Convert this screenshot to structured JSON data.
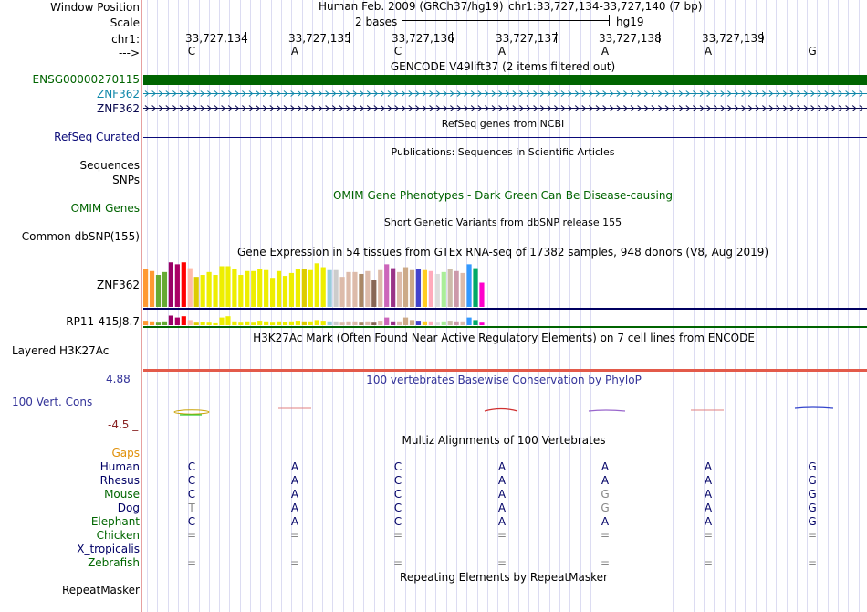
{
  "ruler": {
    "window_position_label": "Window Position",
    "scale_label": "Scale",
    "chrom_label": "chr1:",
    "strand_label": "--->",
    "assembly_text": "Human Feb. 2009 (GRCh37/hg19)",
    "position_text": "chr1:33,727,134-33,727,140 (7 bp)",
    "scale_text": "2 bases",
    "assembly_short": "hg19",
    "coordinates": [
      "33,727,134",
      "33,727,135",
      "33,727,136",
      "33,727,137",
      "33,727,138",
      "33,727,139"
    ],
    "bases": [
      "C",
      "A",
      "C",
      "A",
      "A",
      "A",
      "G"
    ]
  },
  "gencode": {
    "title": "GENCODE V49lift37 (2 items filtered out)",
    "items": [
      {
        "label": "ENSG00000270115",
        "color": "#006400"
      },
      {
        "label": "ZNF362",
        "color": "#1188aa"
      },
      {
        "label": "ZNF362",
        "color": "#0a0a50"
      }
    ]
  },
  "refseq": {
    "title": "RefSeq genes from NCBI",
    "label": "RefSeq Curated",
    "color": "#0a0a78"
  },
  "publications": {
    "title": "Publications: Sequences in Scientific Articles",
    "rows": [
      "Sequences",
      "SNPs"
    ]
  },
  "omim": {
    "title": "OMIM Gene Phenotypes - Dark Green Can Be Disease-causing",
    "label": "OMIM Genes",
    "color": "#006400"
  },
  "dbsnp": {
    "title": "Short Genetic Variants from dbSNP release 155",
    "label": "Common dbSNP(155)"
  },
  "gtex": {
    "title": "Gene Expression in 54 tissues from GTEx RNA-seq of 17382 samples, 948 donors (V8, Aug 2019)",
    "genes": [
      "ZNF362",
      "RP11-415J8.7"
    ],
    "values_gene1": [
      0.78,
      0.74,
      0.66,
      0.72,
      0.92,
      0.88,
      0.92,
      0.8,
      0.62,
      0.66,
      0.72,
      0.66,
      0.84,
      0.84,
      0.78,
      0.66,
      0.74,
      0.74,
      0.78,
      0.76,
      0.6,
      0.74,
      0.64,
      0.7,
      0.78,
      0.78,
      0.76,
      0.9,
      0.82,
      0.76,
      0.76,
      0.62,
      0.72,
      0.72,
      0.68,
      0.74,
      0.56,
      0.76,
      0.88,
      0.8,
      0.72,
      0.82,
      0.76,
      0.78,
      0.76,
      0.74,
      0.68,
      0.72,
      0.78,
      0.74,
      0.7,
      0.88,
      0.8,
      0.5
    ],
    "values_gene2": [
      0.35,
      0.3,
      0.2,
      0.3,
      0.75,
      0.6,
      0.7,
      0.4,
      0.2,
      0.25,
      0.2,
      0.15,
      0.6,
      0.7,
      0.3,
      0.2,
      0.3,
      0.2,
      0.35,
      0.3,
      0.2,
      0.3,
      0.25,
      0.3,
      0.35,
      0.3,
      0.3,
      0.4,
      0.35,
      0.3,
      0.3,
      0.2,
      0.3,
      0.3,
      0.2,
      0.3,
      0.2,
      0.35,
      0.6,
      0.3,
      0.3,
      0.6,
      0.4,
      0.35,
      0.3,
      0.3,
      0.2,
      0.3,
      0.35,
      0.3,
      0.3,
      0.6,
      0.4,
      0.2
    ],
    "colors": [
      "#ff9933",
      "#ff9933",
      "#66aa33",
      "#66aa33",
      "#990066",
      "#aa0066",
      "#ff0000",
      "#ffbbaa",
      "#ddcc00",
      "#eeee00",
      "#eeee00",
      "#eeee00",
      "#eeee00",
      "#eeee00",
      "#eeee00",
      "#eeee00",
      "#eeee00",
      "#eeee00",
      "#eeee00",
      "#eeee00",
      "#eeee00",
      "#eeee00",
      "#eeee00",
      "#eeee00",
      "#eeee00",
      "#ddcc00",
      "#eeee00",
      "#eeee00",
      "#eeee00",
      "#99ccdd",
      "#cccccc",
      "#ddbbaa",
      "#ddbbaa",
      "#ddbbaa",
      "#aa8866",
      "#ddbbaa",
      "#886655",
      "#ddbbaa",
      "#cc66bb",
      "#993388",
      "#ddbbaa",
      "#ccaa88",
      "#ccaa88",
      "#4444cc",
      "#ffcc22",
      "#ffaabb",
      "#dddddd",
      "#aaee99",
      "#ccbbaa",
      "#cc99aa",
      "#ddbbaa",
      "#3399ff",
      "#00aa66",
      "#ff00cc"
    ]
  },
  "h3k27ac": {
    "title": "H3K27Ac Mark (Often Found Near Active Regulatory Elements) on 7 cell lines from ENCODE",
    "label": "Layered H3K27Ac"
  },
  "phylop": {
    "title": "100 vertebrates Basewise Conservation by PhyloP",
    "label": "100 Vert. Cons",
    "max": "4.88 _",
    "min": "-4.5 _",
    "title_color": "#333399"
  },
  "multiz": {
    "title": "Multiz Alignments of 100 Vertebrates",
    "gaps_label": "Gaps",
    "species": [
      {
        "name": "Human",
        "color": "#000066",
        "bases": [
          "C",
          "A",
          "C",
          "A",
          "A",
          "A",
          "G"
        ]
      },
      {
        "name": "Rhesus",
        "color": "#000066",
        "bases": [
          "C",
          "A",
          "C",
          "A",
          "A",
          "A",
          "G"
        ]
      },
      {
        "name": "Mouse",
        "color": "#006600",
        "bases": [
          "C",
          "A",
          "C",
          "A",
          "G",
          "A",
          "G"
        ]
      },
      {
        "name": "Dog",
        "color": "#000066",
        "bases": [
          "T",
          "A",
          "C",
          "A",
          "G",
          "A",
          "G"
        ]
      },
      {
        "name": "Elephant",
        "color": "#006600",
        "bases": [
          "C",
          "A",
          "C",
          "A",
          "A",
          "A",
          "G"
        ]
      },
      {
        "name": "Chicken",
        "color": "#006600",
        "bases": [
          "=",
          "=",
          "=",
          "=",
          "=",
          "=",
          "="
        ]
      },
      {
        "name": "X_tropicalis",
        "color": "#000066",
        "bases": [
          "",
          "",
          "",
          "",
          "",
          "",
          ""
        ]
      },
      {
        "name": "Zebrafish",
        "color": "#006600",
        "bases": [
          "=",
          "=",
          "=",
          "=",
          "=",
          "=",
          "="
        ]
      }
    ]
  },
  "repeatmasker": {
    "title": "Repeating Elements by RepeatMasker",
    "label": "RepeatMasker"
  }
}
